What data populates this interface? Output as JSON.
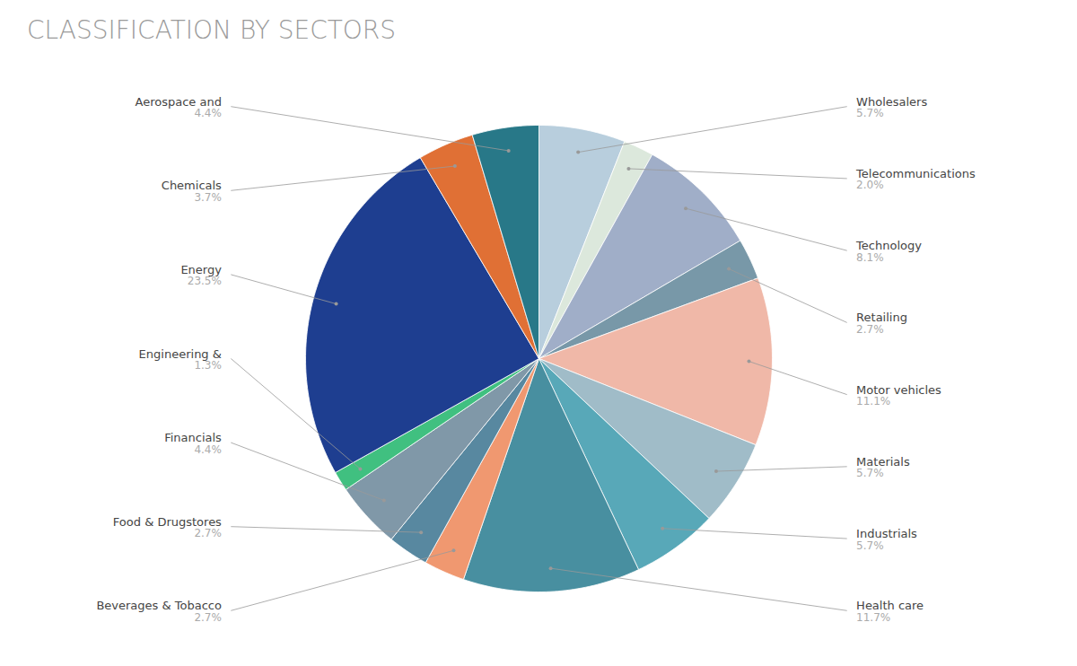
{
  "chart_data": {
    "type": "pie",
    "title": "CLASSIFICATION BY SECTORS",
    "categories": [
      "Wholesalers",
      "Telecommunications",
      "Technology",
      "Retailing",
      "Motor vehicles",
      "Materials",
      "Industrials",
      "Health care",
      "Beverages & Tobacco",
      "Food & Drugstores",
      "Financials",
      "Engineering &",
      "Energy",
      "Chemicals",
      "Aerospace and"
    ],
    "values": [
      5.7,
      2.0,
      8.1,
      2.7,
      11.1,
      5.7,
      5.7,
      11.7,
      2.7,
      2.7,
      4.4,
      1.3,
      23.5,
      3.7,
      4.4
    ],
    "value_labels": [
      "5.7%",
      "2.0%",
      "8.1%",
      "2.7%",
      "11.1%",
      "5.7%",
      "5.7%",
      "11.7%",
      "2.7%",
      "2.7%",
      "4.4%",
      "1.3%",
      "23.5%",
      "3.7%",
      "4.4%"
    ],
    "colors": [
      "#b8cedd",
      "#dce8dc",
      "#a0aec8",
      "#7898a8",
      "#f0b8a8",
      "#a0bcc8",
      "#58a8b8",
      "#488fa0",
      "#f09870",
      "#5888a0",
      "#8098a8",
      "#40c080",
      "#1e3e90",
      "#e07035",
      "#287888"
    ]
  }
}
